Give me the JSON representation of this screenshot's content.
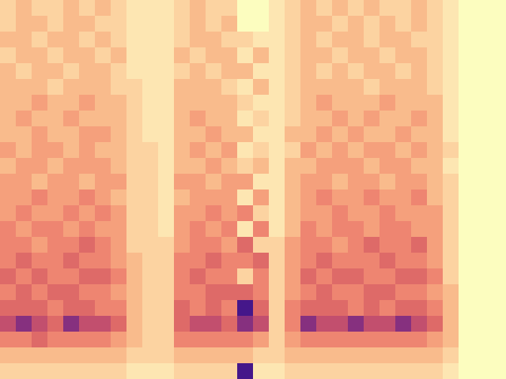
{
  "chart_data": {
    "type": "heatmap",
    "tick_labels": false,
    "zlim": [
      0,
      9
    ],
    "cells": [
      [
        2,
        3,
        2,
        2,
        3,
        2,
        3,
        2,
        1,
        1,
        1,
        2,
        3,
        2,
        2,
        0,
        0,
        1,
        2,
        3,
        2,
        3,
        2,
        3,
        2,
        2,
        3,
        2,
        1,
        0,
        0,
        0
      ],
      [
        2,
        3,
        3,
        2,
        3,
        3,
        2,
        2,
        1,
        1,
        1,
        2,
        3,
        2,
        3,
        0,
        0,
        1,
        2,
        3,
        3,
        2,
        3,
        2,
        3,
        2,
        3,
        2,
        1,
        0,
        0,
        0
      ],
      [
        3,
        3,
        2,
        3,
        3,
        2,
        3,
        2,
        1,
        1,
        1,
        2,
        3,
        3,
        2,
        2,
        1,
        1,
        2,
        3,
        2,
        3,
        3,
        2,
        3,
        3,
        2,
        2,
        1,
        0,
        0,
        0
      ],
      [
        2,
        3,
        3,
        2,
        3,
        3,
        2,
        3,
        1,
        1,
        1,
        3,
        2,
        3,
        3,
        1,
        3,
        1,
        2,
        3,
        3,
        2,
        3,
        3,
        2,
        3,
        3,
        2,
        1,
        0,
        0,
        0
      ],
      [
        3,
        2,
        3,
        3,
        2,
        3,
        3,
        2,
        1,
        1,
        1,
        2,
        3,
        2,
        3,
        3,
        1,
        1,
        2,
        3,
        2,
        3,
        2,
        3,
        3,
        2,
        3,
        2,
        1,
        0,
        0,
        0
      ],
      [
        3,
        3,
        3,
        2,
        3,
        3,
        3,
        2,
        2,
        1,
        1,
        3,
        3,
        3,
        2,
        1,
        3,
        1,
        2,
        3,
        3,
        3,
        3,
        2,
        3,
        3,
        3,
        2,
        1,
        0,
        0,
        0
      ],
      [
        3,
        3,
        4,
        3,
        3,
        4,
        3,
        3,
        2,
        1,
        1,
        3,
        3,
        3,
        3,
        2,
        1,
        1,
        2,
        3,
        4,
        3,
        3,
        3,
        4,
        3,
        3,
        3,
        1,
        0,
        0,
        0
      ],
      [
        3,
        4,
        3,
        3,
        4,
        3,
        3,
        3,
        2,
        1,
        1,
        3,
        4,
        3,
        3,
        1,
        2,
        1,
        2,
        3,
        3,
        4,
        3,
        4,
        3,
        3,
        4,
        3,
        1,
        0,
        0,
        0
      ],
      [
        3,
        3,
        4,
        3,
        3,
        4,
        4,
        3,
        2,
        1,
        1,
        3,
        3,
        4,
        3,
        3,
        1,
        1,
        3,
        3,
        4,
        3,
        4,
        3,
        3,
        4,
        3,
        3,
        1,
        0,
        0,
        0
      ],
      [
        4,
        3,
        4,
        4,
        3,
        4,
        3,
        3,
        2,
        2,
        1,
        3,
        4,
        3,
        4,
        1,
        2,
        1,
        2,
        4,
        3,
        4,
        3,
        4,
        4,
        3,
        4,
        3,
        2,
        0,
        0,
        0
      ],
      [
        3,
        4,
        4,
        3,
        4,
        4,
        4,
        3,
        2,
        2,
        1,
        3,
        3,
        4,
        3,
        2,
        3,
        1,
        3,
        3,
        4,
        4,
        4,
        3,
        4,
        4,
        3,
        3,
        1,
        0,
        0,
        0
      ],
      [
        4,
        4,
        3,
        4,
        4,
        3,
        4,
        4,
        2,
        2,
        1,
        4,
        4,
        3,
        4,
        4,
        1,
        1,
        3,
        4,
        4,
        3,
        4,
        4,
        3,
        4,
        4,
        3,
        2,
        0,
        0,
        0
      ],
      [
        4,
        4,
        5,
        4,
        4,
        5,
        4,
        3,
        2,
        2,
        1,
        3,
        4,
        4,
        4,
        1,
        4,
        1,
        3,
        4,
        5,
        4,
        4,
        5,
        4,
        4,
        5,
        3,
        2,
        0,
        0,
        0
      ],
      [
        4,
        5,
        4,
        4,
        5,
        4,
        5,
        4,
        2,
        2,
        1,
        4,
        4,
        5,
        4,
        5,
        2,
        1,
        3,
        4,
        4,
        5,
        4,
        4,
        5,
        4,
        4,
        4,
        2,
        0,
        0,
        0
      ],
      [
        5,
        4,
        5,
        5,
        4,
        5,
        4,
        4,
        2,
        2,
        1,
        4,
        5,
        4,
        5,
        1,
        5,
        1,
        3,
        5,
        4,
        5,
        5,
        4,
        5,
        5,
        4,
        4,
        2,
        0,
        0,
        0
      ],
      [
        5,
        5,
        4,
        5,
        5,
        6,
        5,
        4,
        2,
        2,
        2,
        4,
        5,
        5,
        4,
        6,
        2,
        2,
        4,
        5,
        5,
        4,
        5,
        6,
        5,
        5,
        6,
        4,
        2,
        0,
        0,
        0
      ],
      [
        5,
        6,
        5,
        5,
        6,
        5,
        5,
        4,
        3,
        2,
        2,
        5,
        5,
        6,
        5,
        5,
        6,
        2,
        4,
        5,
        6,
        5,
        5,
        5,
        6,
        5,
        5,
        4,
        2,
        0,
        0,
        0
      ],
      [
        6,
        5,
        6,
        5,
        5,
        6,
        6,
        5,
        3,
        2,
        2,
        5,
        6,
        5,
        5,
        2,
        5,
        2,
        4,
        6,
        5,
        6,
        6,
        5,
        5,
        6,
        6,
        5,
        2,
        0,
        0,
        0
      ],
      [
        5,
        6,
        5,
        6,
        6,
        5,
        5,
        4,
        3,
        2,
        2,
        5,
        5,
        6,
        6,
        6,
        5,
        2,
        4,
        5,
        6,
        5,
        5,
        6,
        6,
        5,
        5,
        4,
        3,
        0,
        0,
        0
      ],
      [
        6,
        6,
        6,
        5,
        6,
        6,
        5,
        5,
        3,
        2,
        2,
        6,
        5,
        6,
        5,
        9,
        6,
        2,
        5,
        6,
        6,
        6,
        5,
        6,
        5,
        6,
        6,
        5,
        3,
        0,
        0,
        0
      ],
      [
        7,
        8,
        7,
        6,
        8,
        7,
        7,
        6,
        3,
        2,
        2,
        6,
        7,
        7,
        6,
        8,
        7,
        2,
        5,
        8,
        7,
        7,
        8,
        7,
        7,
        8,
        7,
        6,
        3,
        0,
        0,
        0
      ],
      [
        5,
        5,
        6,
        5,
        5,
        5,
        5,
        4,
        3,
        2,
        2,
        5,
        5,
        5,
        5,
        5,
        4,
        2,
        4,
        5,
        5,
        5,
        5,
        5,
        5,
        5,
        5,
        4,
        3,
        0,
        0,
        0
      ],
      [
        3,
        3,
        3,
        3,
        3,
        3,
        3,
        3,
        2,
        2,
        2,
        3,
        3,
        3,
        3,
        3,
        2,
        2,
        3,
        3,
        3,
        3,
        3,
        3,
        3,
        3,
        3,
        3,
        2,
        0,
        0,
        0
      ],
      [
        2,
        2,
        2,
        2,
        2,
        2,
        2,
        2,
        1,
        1,
        1,
        2,
        2,
        2,
        2,
        9,
        1,
        1,
        2,
        2,
        2,
        2,
        2,
        2,
        2,
        2,
        2,
        2,
        1,
        0,
        0,
        0
      ]
    ]
  }
}
